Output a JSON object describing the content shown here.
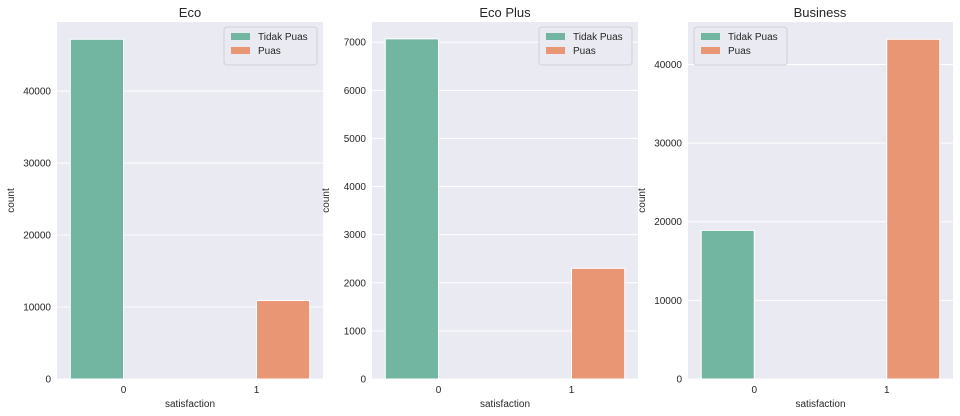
{
  "figure": {
    "background": "#ffffff",
    "panel_bg": "#eaeaf2",
    "grid_color": "#ffffff"
  },
  "chart_data": [
    {
      "type": "bar",
      "title": "Eco",
      "xlabel": "satisfaction",
      "ylabel": "count",
      "categories": [
        "0",
        "1"
      ],
      "series": [
        {
          "name": "Tidak Puas",
          "color": "#72b6a1",
          "values": [
            47200,
            0
          ]
        },
        {
          "name": "Puas",
          "color": "#e99675",
          "values": [
            0,
            10900
          ]
        }
      ],
      "ylim": [
        0,
        49600
      ],
      "yticks": [
        0,
        10000,
        20000,
        30000,
        40000
      ],
      "legend": "top-right"
    },
    {
      "type": "bar",
      "title": "Eco Plus",
      "xlabel": "satisfaction",
      "ylabel": "count",
      "categories": [
        "0",
        "1"
      ],
      "series": [
        {
          "name": "Tidak Puas",
          "color": "#72b6a1",
          "values": [
            7070,
            0
          ]
        },
        {
          "name": "Puas",
          "color": "#e99675",
          "values": [
            0,
            2300
          ]
        }
      ],
      "ylim": [
        0,
        7420
      ],
      "yticks": [
        0,
        1000,
        2000,
        3000,
        4000,
        5000,
        6000,
        7000
      ],
      "legend": "top-right"
    },
    {
      "type": "bar",
      "title": "Business",
      "xlabel": "satisfaction",
      "ylabel": "count",
      "categories": [
        "0",
        "1"
      ],
      "series": [
        {
          "name": "Tidak Puas",
          "color": "#72b6a1",
          "values": [
            18900,
            0
          ]
        },
        {
          "name": "Puas",
          "color": "#e99675",
          "values": [
            0,
            43200
          ]
        }
      ],
      "ylim": [
        0,
        45400
      ],
      "yticks": [
        0,
        10000,
        20000,
        30000,
        40000
      ],
      "legend": "top-left"
    }
  ]
}
